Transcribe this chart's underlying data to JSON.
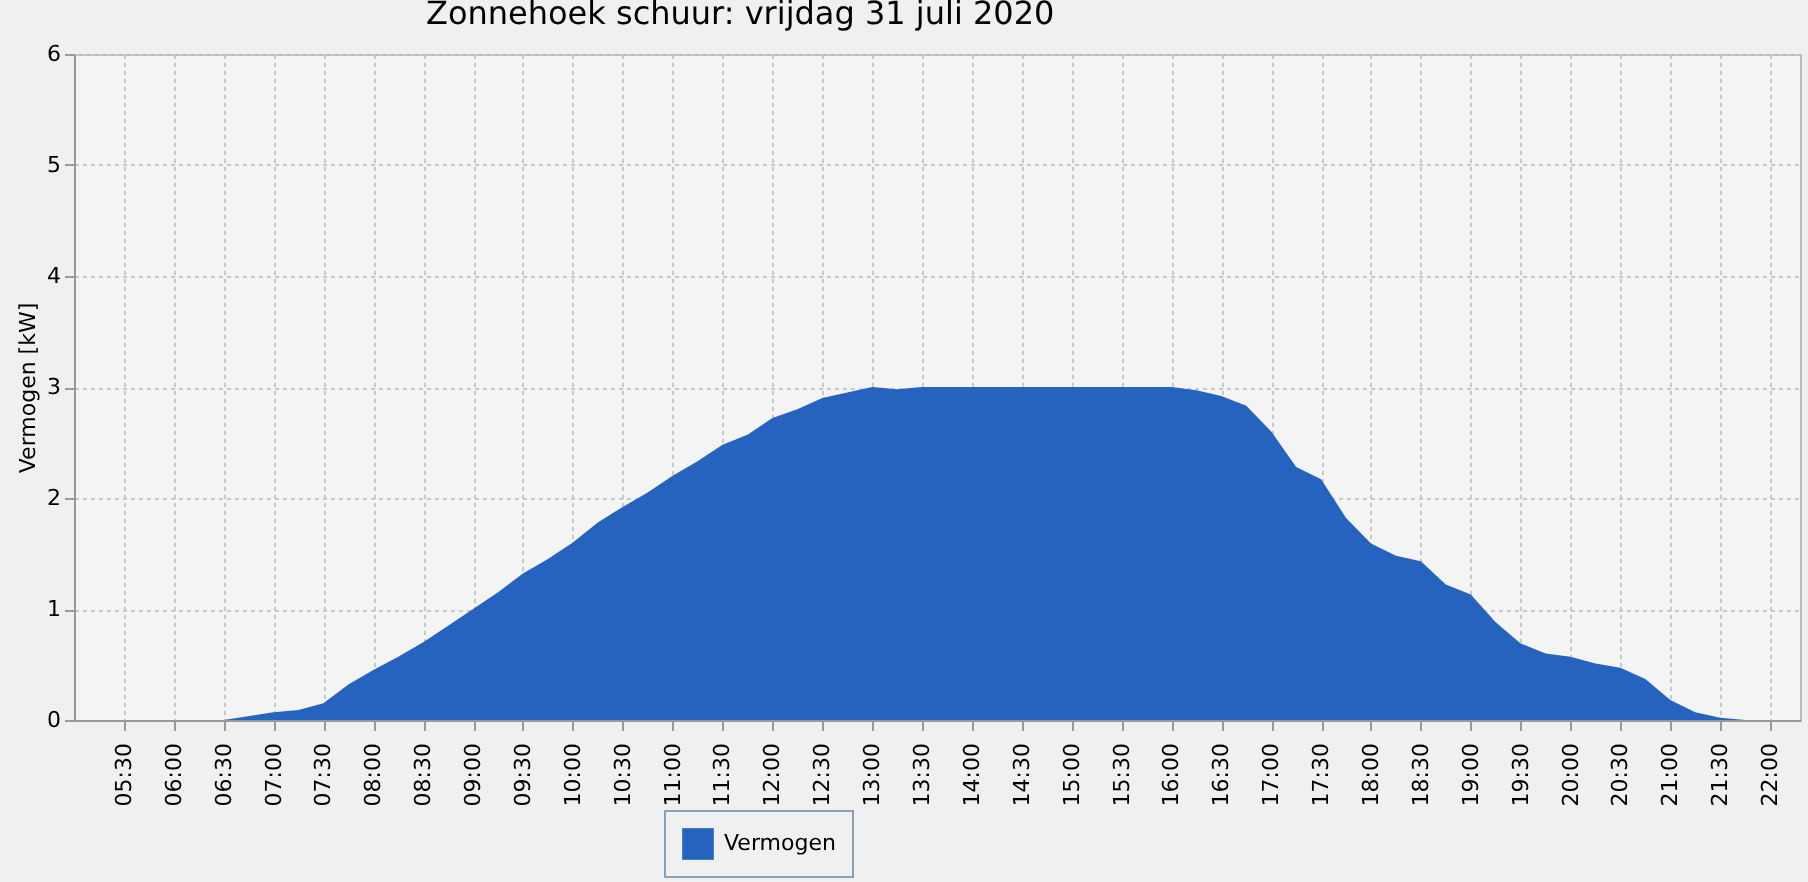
{
  "chart_data": {
    "type": "area",
    "title": "Zonnehoek schuur: vrijdag 31 juli 2020",
    "ylabel": "Vermogen [kW]",
    "x": [
      6.0,
      6.5,
      7.0,
      7.25,
      7.5,
      7.75,
      8.0,
      8.25,
      8.5,
      8.75,
      9.0,
      9.25,
      9.5,
      9.75,
      10.0,
      10.25,
      10.5,
      10.75,
      11.0,
      11.25,
      11.5,
      11.75,
      12.0,
      12.25,
      12.5,
      12.75,
      13.0,
      13.25,
      13.5,
      14.0,
      14.5,
      15.0,
      15.5,
      16.0,
      16.25,
      16.5,
      16.75,
      17.0,
      17.25,
      17.5,
      17.75,
      18.0,
      18.25,
      18.5,
      18.75,
      19.0,
      19.25,
      19.5,
      19.75,
      20.0,
      20.25,
      20.5,
      20.75,
      21.0,
      21.25,
      21.5,
      21.75
    ],
    "series": [
      {
        "name": "Vermogen",
        "color": "#2563be",
        "values": [
          0,
          0,
          0.07,
          0.09,
          0.15,
          0.32,
          0.45,
          0.57,
          0.7,
          0.85,
          1.0,
          1.15,
          1.32,
          1.45,
          1.6,
          1.78,
          1.92,
          2.05,
          2.2,
          2.33,
          2.48,
          2.57,
          2.72,
          2.8,
          2.9,
          2.95,
          3.0,
          2.98,
          3.0,
          3.0,
          3.0,
          3.0,
          3.0,
          3.0,
          2.97,
          2.92,
          2.83,
          2.6,
          2.28,
          2.17,
          1.82,
          1.59,
          1.48,
          1.43,
          1.22,
          1.13,
          0.88,
          0.69,
          0.6,
          0.57,
          0.51,
          0.47,
          0.37,
          0.18,
          0.07,
          0.02,
          0
        ]
      }
    ],
    "xlim": [
      5.0,
      22.3
    ],
    "xticks": [
      {
        "value": 5.5,
        "label": "05:30"
      },
      {
        "value": 6.0,
        "label": "06:00"
      },
      {
        "value": 6.5,
        "label": "06:30"
      },
      {
        "value": 7.0,
        "label": "07:00"
      },
      {
        "value": 7.5,
        "label": "07:30"
      },
      {
        "value": 8.0,
        "label": "08:00"
      },
      {
        "value": 8.5,
        "label": "08:30"
      },
      {
        "value": 9.0,
        "label": "09:00"
      },
      {
        "value": 9.5,
        "label": "09:30"
      },
      {
        "value": 10.0,
        "label": "10:00"
      },
      {
        "value": 10.5,
        "label": "10:30"
      },
      {
        "value": 11.0,
        "label": "11:00"
      },
      {
        "value": 11.5,
        "label": "11:30"
      },
      {
        "value": 12.0,
        "label": "12:00"
      },
      {
        "value": 12.5,
        "label": "12:30"
      },
      {
        "value": 13.0,
        "label": "13:00"
      },
      {
        "value": 13.5,
        "label": "13:30"
      },
      {
        "value": 14.0,
        "label": "14:00"
      },
      {
        "value": 14.5,
        "label": "14:30"
      },
      {
        "value": 15.0,
        "label": "15:00"
      },
      {
        "value": 15.5,
        "label": "15:30"
      },
      {
        "value": 16.0,
        "label": "16:00"
      },
      {
        "value": 16.5,
        "label": "16:30"
      },
      {
        "value": 17.0,
        "label": "17:00"
      },
      {
        "value": 17.5,
        "label": "17:30"
      },
      {
        "value": 18.0,
        "label": "18:00"
      },
      {
        "value": 18.5,
        "label": "18:30"
      },
      {
        "value": 19.0,
        "label": "19:00"
      },
      {
        "value": 19.5,
        "label": "19:30"
      },
      {
        "value": 20.0,
        "label": "20:00"
      },
      {
        "value": 20.5,
        "label": "20:30"
      },
      {
        "value": 21.0,
        "label": "21:00"
      },
      {
        "value": 21.5,
        "label": "21:30"
      },
      {
        "value": 22.0,
        "label": "22:00"
      }
    ],
    "ylim": [
      0,
      6
    ],
    "yticks": [
      0,
      1,
      2,
      3,
      4,
      5,
      6
    ],
    "grid": true,
    "legend": "bottom"
  }
}
